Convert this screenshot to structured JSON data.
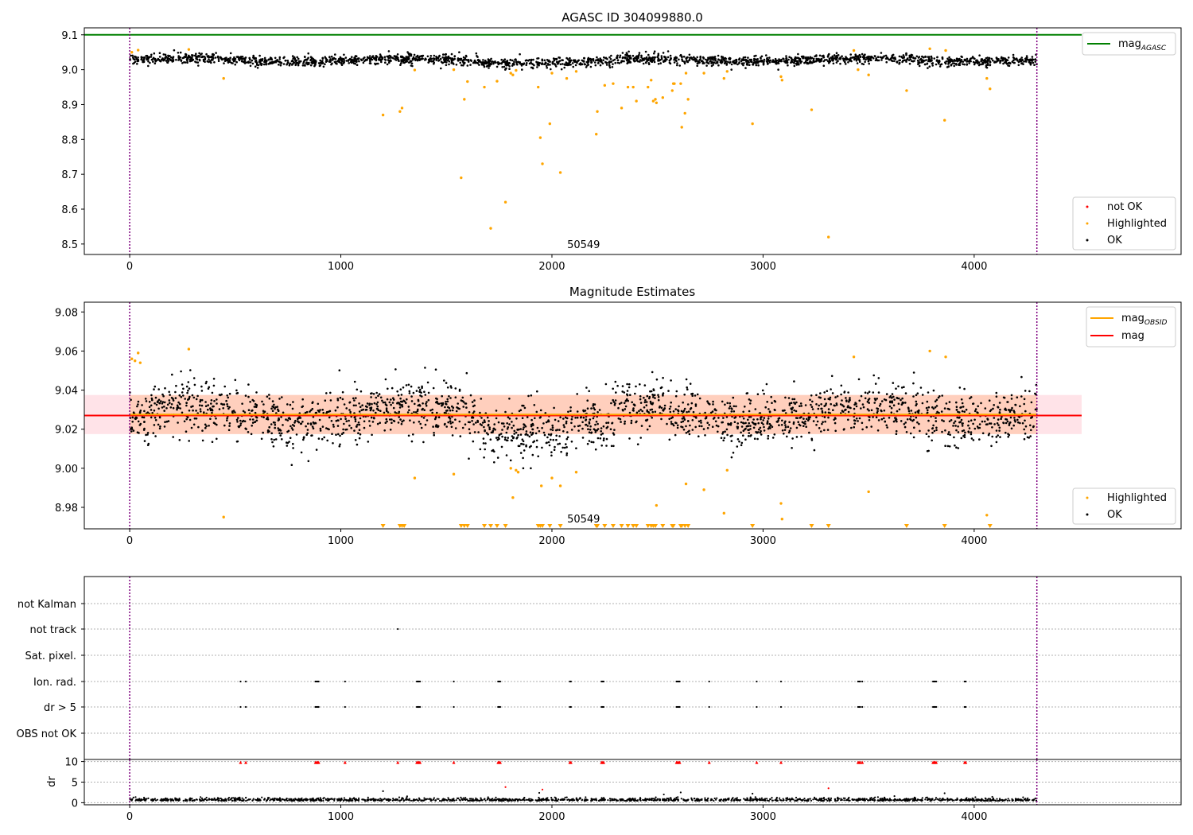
{
  "colors": {
    "ok": "#000000",
    "highlighted": "#ffa500",
    "not_ok": "#ff0000",
    "agasc_line": "#008000",
    "obsid_line": "#ffa500",
    "mag_line": "#ff0000",
    "band_red": "#ffc0cb",
    "band_orange": "#ffbf99",
    "obs_boundary": "#800080",
    "grid": "#b0b0b0"
  },
  "chart_data": [
    {
      "type": "scatter",
      "title": "AGASC ID 304099880.0",
      "xlim": [
        -215,
        4980
      ],
      "ylim": [
        8.47,
        9.12
      ],
      "xticks": [
        "0",
        "1000",
        "2000",
        "3000",
        "4000"
      ],
      "yticks": [
        "8.5",
        "8.6",
        "8.7",
        "8.8",
        "8.9",
        "9.0",
        "9.1"
      ],
      "obs_boundaries": [
        0,
        4297
      ],
      "obsid_label": "50549",
      "mag_agasc": 9.1,
      "ok_series": {
        "name": "OK",
        "count": 2200,
        "center": 9.028,
        "spread": 0.01
      },
      "highlighted_points": [
        [
          10,
          9.05
        ],
        [
          40,
          9.056
        ],
        [
          280,
          9.058
        ],
        [
          445,
          8.975
        ],
        [
          1200,
          8.87
        ],
        [
          1280,
          8.88
        ],
        [
          1290,
          8.89
        ],
        [
          1350,
          8.999
        ],
        [
          1535,
          9.0
        ],
        [
          1570,
          8.69
        ],
        [
          1585,
          8.915
        ],
        [
          1600,
          8.966
        ],
        [
          1680,
          8.95
        ],
        [
          1710,
          8.545
        ],
        [
          1740,
          8.967
        ],
        [
          1780,
          8.62
        ],
        [
          1805,
          8.99
        ],
        [
          1815,
          8.985
        ],
        [
          1830,
          8.998
        ],
        [
          1935,
          8.95
        ],
        [
          1945,
          8.805
        ],
        [
          1955,
          8.73
        ],
        [
          1990,
          8.845
        ],
        [
          2000,
          8.99
        ],
        [
          2040,
          8.705
        ],
        [
          2070,
          8.975
        ],
        [
          2115,
          8.995
        ],
        [
          2210,
          8.815
        ],
        [
          2215,
          8.88
        ],
        [
          2250,
          8.955
        ],
        [
          2290,
          8.96
        ],
        [
          2330,
          8.89
        ],
        [
          2360,
          8.95
        ],
        [
          2385,
          8.95
        ],
        [
          2400,
          8.91
        ],
        [
          2455,
          8.95
        ],
        [
          2470,
          8.97
        ],
        [
          2480,
          8.91
        ],
        [
          2490,
          8.915
        ],
        [
          2495,
          8.905
        ],
        [
          2525,
          8.92
        ],
        [
          2570,
          8.94
        ],
        [
          2575,
          8.96
        ],
        [
          2580,
          8.96
        ],
        [
          2610,
          8.96
        ],
        [
          2615,
          8.835
        ],
        [
          2630,
          8.875
        ],
        [
          2635,
          8.99
        ],
        [
          2645,
          8.915
        ],
        [
          2720,
          8.99
        ],
        [
          2815,
          8.975
        ],
        [
          2830,
          8.995
        ],
        [
          2950,
          8.845
        ],
        [
          3085,
          8.98
        ],
        [
          3090,
          8.97
        ],
        [
          3230,
          8.885
        ],
        [
          3310,
          8.52
        ],
        [
          3430,
          9.055
        ],
        [
          3450,
          9.0
        ],
        [
          3500,
          8.985
        ],
        [
          3680,
          8.94
        ],
        [
          3790,
          9.06
        ],
        [
          3860,
          8.855
        ],
        [
          3865,
          9.055
        ],
        [
          4060,
          8.975
        ],
        [
          4075,
          8.945
        ]
      ],
      "legend_top": [
        "mag_AGASC"
      ],
      "legend_bottom": [
        "not OK",
        "Highlighted",
        "OK"
      ]
    },
    {
      "type": "scatter",
      "title": "Magnitude Estimates",
      "xlim": [
        -215,
        4980
      ],
      "ylim": [
        8.969,
        9.085
      ],
      "xticks": [
        "0",
        "1000",
        "2000",
        "3000",
        "4000"
      ],
      "yticks": [
        "8.98",
        "9.00",
        "9.02",
        "9.04",
        "9.06",
        "9.08"
      ],
      "obs_boundaries": [
        0,
        4297
      ],
      "obsid_label": "50549",
      "mag": 9.027,
      "mag_obsid": 9.0275,
      "band": [
        9.0175,
        9.0375
      ],
      "ok_series": {
        "name": "OK",
        "count": 2200,
        "center": 9.028,
        "spread": 0.01
      },
      "highlighted_points": [
        [
          10,
          9.056
        ],
        [
          25,
          9.055
        ],
        [
          40,
          9.059
        ],
        [
          50,
          9.054
        ],
        [
          280,
          9.061
        ],
        [
          445,
          8.975
        ],
        [
          1350,
          8.995
        ],
        [
          1535,
          8.997
        ],
        [
          1805,
          9.0
        ],
        [
          1815,
          8.985
        ],
        [
          1830,
          8.999
        ],
        [
          1840,
          8.998
        ],
        [
          1950,
          8.991
        ],
        [
          2000,
          8.995
        ],
        [
          2040,
          8.991
        ],
        [
          2115,
          8.998
        ],
        [
          2495,
          8.981
        ],
        [
          2635,
          8.992
        ],
        [
          2720,
          8.989
        ],
        [
          2815,
          8.977
        ],
        [
          2830,
          8.999
        ],
        [
          3085,
          8.982
        ],
        [
          3090,
          8.974
        ],
        [
          3430,
          9.057
        ],
        [
          3500,
          8.988
        ],
        [
          3790,
          9.06
        ],
        [
          3865,
          9.057
        ],
        [
          4060,
          8.976
        ]
      ],
      "clipped_low_x": [
        1200,
        1280,
        1290,
        1300,
        1570,
        1585,
        1600,
        1680,
        1710,
        1740,
        1780,
        1935,
        1945,
        1955,
        1990,
        2040,
        2210,
        2215,
        2250,
        2290,
        2330,
        2360,
        2385,
        2400,
        2455,
        2470,
        2480,
        2490,
        2525,
        2570,
        2575,
        2610,
        2615,
        2630,
        2645,
        2950,
        3230,
        3310,
        3680,
        3860,
        4075
      ],
      "legend_top": [
        "mag_OBSID",
        "mag"
      ],
      "legend_bottom": [
        "Highlighted",
        "OK"
      ]
    },
    {
      "type": "scatter",
      "title": "",
      "xlim": [
        -215,
        4980
      ],
      "xticks": [
        "0",
        "1000",
        "2000",
        "3000",
        "4000"
      ],
      "obs_boundaries": [
        0,
        4297
      ],
      "flag_labels": [
        "not Kalman",
        "not track",
        "Sat. pixel.",
        "Ion. rad.",
        "dr > 5",
        "OBS not OK"
      ],
      "flag_points": {
        "not Kalman": [],
        "not track": [
          1270
        ],
        "Sat. pixel.": [],
        "Ion. rad.": [
          525,
          550,
          880,
          885,
          890,
          895,
          1020,
          1360,
          1365,
          1370,
          1375,
          1535,
          1745,
          1750,
          1755,
          2085,
          2090,
          2235,
          2240,
          2245,
          2590,
          2595,
          2600,
          2605,
          2745,
          2970,
          3085,
          3450,
          3455,
          3460,
          3470,
          3805,
          3810,
          3815,
          3820,
          3955,
          3960
        ],
        "dr > 5": [
          525,
          550,
          880,
          885,
          890,
          895,
          1020,
          1360,
          1365,
          1370,
          1375,
          1535,
          1745,
          1750,
          1755,
          2085,
          2090,
          2235,
          2240,
          2245,
          2590,
          2595,
          2600,
          2605,
          2745,
          2970,
          3085,
          3450,
          3455,
          3460,
          3470,
          3805,
          3810,
          3815,
          3820,
          3955,
          3960
        ],
        "OBS not OK": []
      }
    },
    {
      "type": "scatter",
      "title": "",
      "ylabel": "dr",
      "xlim": [
        -215,
        4980
      ],
      "ylim": [
        -0.5,
        10.5
      ],
      "xticks": [
        "0",
        "1000",
        "2000",
        "3000",
        "4000"
      ],
      "yticks": [
        "0",
        "5",
        "10"
      ],
      "obs_boundaries": [
        0,
        4297
      ],
      "dr_ok": {
        "count": 1600,
        "center": 0.6,
        "spread": 0.35
      },
      "dr_outliers": [
        [
          1200,
          2.8
        ],
        [
          1940,
          2.4
        ],
        [
          2610,
          2.5
        ],
        [
          2950,
          2.2
        ],
        [
          3860,
          2.3
        ],
        [
          2530,
          2.0
        ],
        [
          1780,
          3.8
        ],
        [
          1955,
          3.2
        ],
        [
          3310,
          3.5
        ]
      ],
      "dr_clipped_x": [
        525,
        550,
        880,
        885,
        890,
        895,
        1020,
        1270,
        1360,
        1365,
        1370,
        1375,
        1535,
        1745,
        1750,
        1755,
        2085,
        2090,
        2235,
        2240,
        2245,
        2590,
        2595,
        2600,
        2605,
        2745,
        2970,
        3085,
        3450,
        3455,
        3460,
        3470,
        3805,
        3810,
        3815,
        3820,
        3955,
        3960
      ]
    }
  ],
  "legends": {
    "mag_agasc": {
      "main": "mag",
      "sub": "AGASC"
    },
    "mag_obsid": {
      "main": "mag",
      "sub": "OBSID"
    },
    "mag": "mag",
    "not_ok": "not OK",
    "highlighted": "Highlighted",
    "ok": "OK"
  }
}
